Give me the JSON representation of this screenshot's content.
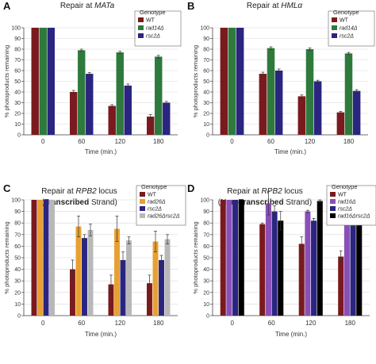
{
  "chart_data": [
    {
      "type": "bar",
      "panel": "A",
      "title_parts": [
        {
          "text": "Repair at "
        },
        {
          "text": "MATa",
          "italic": true
        }
      ],
      "xlabel": "Time (min.)",
      "ylabel": "% photoproducts remaining",
      "categories": [
        "0",
        "60",
        "120",
        "180"
      ],
      "ylim": [
        0,
        100
      ],
      "yticks": [
        0,
        10,
        20,
        30,
        40,
        50,
        60,
        70,
        80,
        90,
        100
      ],
      "legend_title": "Genotype",
      "series": [
        {
          "name": "WT",
          "italic": false,
          "color": "#7a1a1e",
          "values": [
            100,
            40,
            27,
            17
          ],
          "errors": [
            0,
            1.5,
            1.2,
            1.8
          ]
        },
        {
          "name": "rad14Δ",
          "italic": true,
          "color": "#2e7a3c",
          "values": [
            100,
            79,
            77,
            73
          ],
          "errors": [
            0,
            1,
            1,
            1.2
          ]
        },
        {
          "name": "rsc2Δ",
          "italic": true,
          "color": "#2a2580",
          "values": [
            100,
            57,
            46,
            30
          ],
          "errors": [
            0,
            1.2,
            1.5,
            1.2
          ]
        }
      ]
    },
    {
      "type": "bar",
      "panel": "B",
      "title_parts": [
        {
          "text": "Repair at "
        },
        {
          "text": "HMLα",
          "italic": true
        }
      ],
      "xlabel": "Time (min.)",
      "ylabel": "% photoproducts remaining",
      "categories": [
        "0",
        "60",
        "120",
        "180"
      ],
      "ylim": [
        0,
        100
      ],
      "yticks": [
        0,
        10,
        20,
        30,
        40,
        50,
        60,
        70,
        80,
        90,
        100
      ],
      "legend_title": "Genotype",
      "series": [
        {
          "name": "WT",
          "italic": false,
          "color": "#7a1a1e",
          "values": [
            100,
            57,
            36,
            21
          ],
          "errors": [
            0,
            1.5,
            1.2,
            1
          ]
        },
        {
          "name": "rad14Δ",
          "italic": true,
          "color": "#2e7a3c",
          "values": [
            100,
            81,
            80,
            76
          ],
          "errors": [
            0,
            1.2,
            1.2,
            1
          ]
        },
        {
          "name": "rsc2Δ",
          "italic": true,
          "color": "#2a2580",
          "values": [
            100,
            60,
            50,
            41
          ],
          "errors": [
            0,
            1.5,
            1,
            1.2
          ]
        }
      ]
    },
    {
      "type": "bar",
      "panel": "C",
      "title_parts": [
        {
          "text": "Repair at "
        },
        {
          "text": "RPB2",
          "italic": true
        },
        {
          "text": " locus"
        }
      ],
      "title_line2_parts": [
        {
          "text": "("
        },
        {
          "text": "Transcribed",
          "bold": true
        },
        {
          "text": " Strand)"
        }
      ],
      "xlabel": "Time (min.)",
      "ylabel": "% photoproducts remaining",
      "categories": [
        "0",
        "60",
        "120",
        "180"
      ],
      "ylim": [
        0,
        100
      ],
      "yticks": [
        0,
        10,
        20,
        30,
        40,
        50,
        60,
        70,
        80,
        90,
        100
      ],
      "legend_title": "Genotype",
      "series": [
        {
          "name": "WT",
          "italic": false,
          "color": "#7a1a1e",
          "values": [
            100,
            40,
            27,
            28
          ],
          "errors": [
            0,
            8,
            8,
            7
          ]
        },
        {
          "name": "rad26Δ",
          "italic": true,
          "color": "#e8a030",
          "values": [
            100,
            77,
            75,
            64
          ],
          "errors": [
            0,
            9,
            11,
            9
          ]
        },
        {
          "name": "rsc2Δ",
          "italic": true,
          "color": "#2a2580",
          "values": [
            100,
            67,
            48,
            48
          ],
          "errors": [
            0,
            3,
            7,
            4
          ]
        },
        {
          "name": "rad26Δrsc2Δ",
          "italic": true,
          "color": "#b8b8b8",
          "values": [
            100,
            74,
            65,
            66
          ],
          "errors": [
            0,
            5,
            3,
            4
          ]
        }
      ]
    },
    {
      "type": "bar",
      "panel": "D",
      "title_parts": [
        {
          "text": "Repair at "
        },
        {
          "text": "RPB2",
          "italic": true
        },
        {
          "text": " locus"
        }
      ],
      "title_line2_parts": [
        {
          "text": "("
        },
        {
          "text": "Non-Transcribed",
          "bold": true
        },
        {
          "text": " Strand)"
        }
      ],
      "xlabel": "Time (min.)",
      "ylabel": "% photoproducts remaining",
      "categories": [
        "0",
        "60",
        "120",
        "180"
      ],
      "ylim": [
        0,
        100
      ],
      "yticks": [
        0,
        10,
        20,
        30,
        40,
        50,
        60,
        70,
        80,
        90,
        100
      ],
      "legend_title": "Genotype",
      "series": [
        {
          "name": "WT",
          "italic": false,
          "color": "#7a1a1e",
          "values": [
            100,
            79,
            62,
            51
          ],
          "errors": [
            0,
            1,
            6,
            5
          ]
        },
        {
          "name": "rad16Δ",
          "italic": true,
          "color": "#8a4fb8",
          "values": [
            100,
            97,
            90,
            97
          ],
          "errors": [
            0,
            10,
            1,
            1
          ]
        },
        {
          "name": "rsc2Δ",
          "italic": true,
          "color": "#2a2580",
          "values": [
            100,
            90,
            82,
            78
          ],
          "errors": [
            0,
            5,
            2,
            2
          ]
        },
        {
          "name": "rad16Δrsc2Δ",
          "italic": true,
          "color": "#000000",
          "values": [
            100,
            82,
            99,
            94
          ],
          "errors": [
            0,
            8,
            1,
            9
          ]
        }
      ]
    }
  ]
}
